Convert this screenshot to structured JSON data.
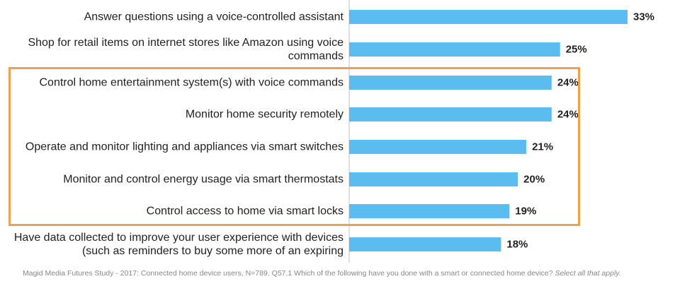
{
  "chart_data": {
    "type": "bar",
    "orientation": "horizontal",
    "categories": [
      "Answer questions using a voice-controlled assistant",
      "Shop for retail items on internet stores like Amazon using voice commands",
      "Control home entertainment system(s) with voice commands",
      "Monitor home security remotely",
      "Operate and monitor lighting and appliances via smart switches",
      "Monitor and control energy usage via smart thermostats",
      "Control access to home via smart locks",
      "Have data collected to improve your user experience with devices (such as reminders to buy some more of an expiring"
    ],
    "values": [
      33,
      25,
      24,
      24,
      21,
      20,
      19,
      18
    ],
    "value_labels": [
      "33%",
      "25%",
      "24%",
      "24%",
      "21%",
      "20%",
      "19%",
      "18%"
    ],
    "unit": "%",
    "bar_color": "#5bbcf0",
    "highlight_color": "#f0a04a",
    "highlighted_categories": [
      2,
      3,
      4,
      5,
      6
    ],
    "xlim": [
      0,
      33
    ],
    "title": "",
    "xlabel": "",
    "ylabel": ""
  },
  "footnote": {
    "text": "Magid Media Futures Study - 2017: Connected home device users, N=789. Q57.1 Which of the following have you done with a smart or connected home device?",
    "emphasis": "Select all that apply."
  }
}
